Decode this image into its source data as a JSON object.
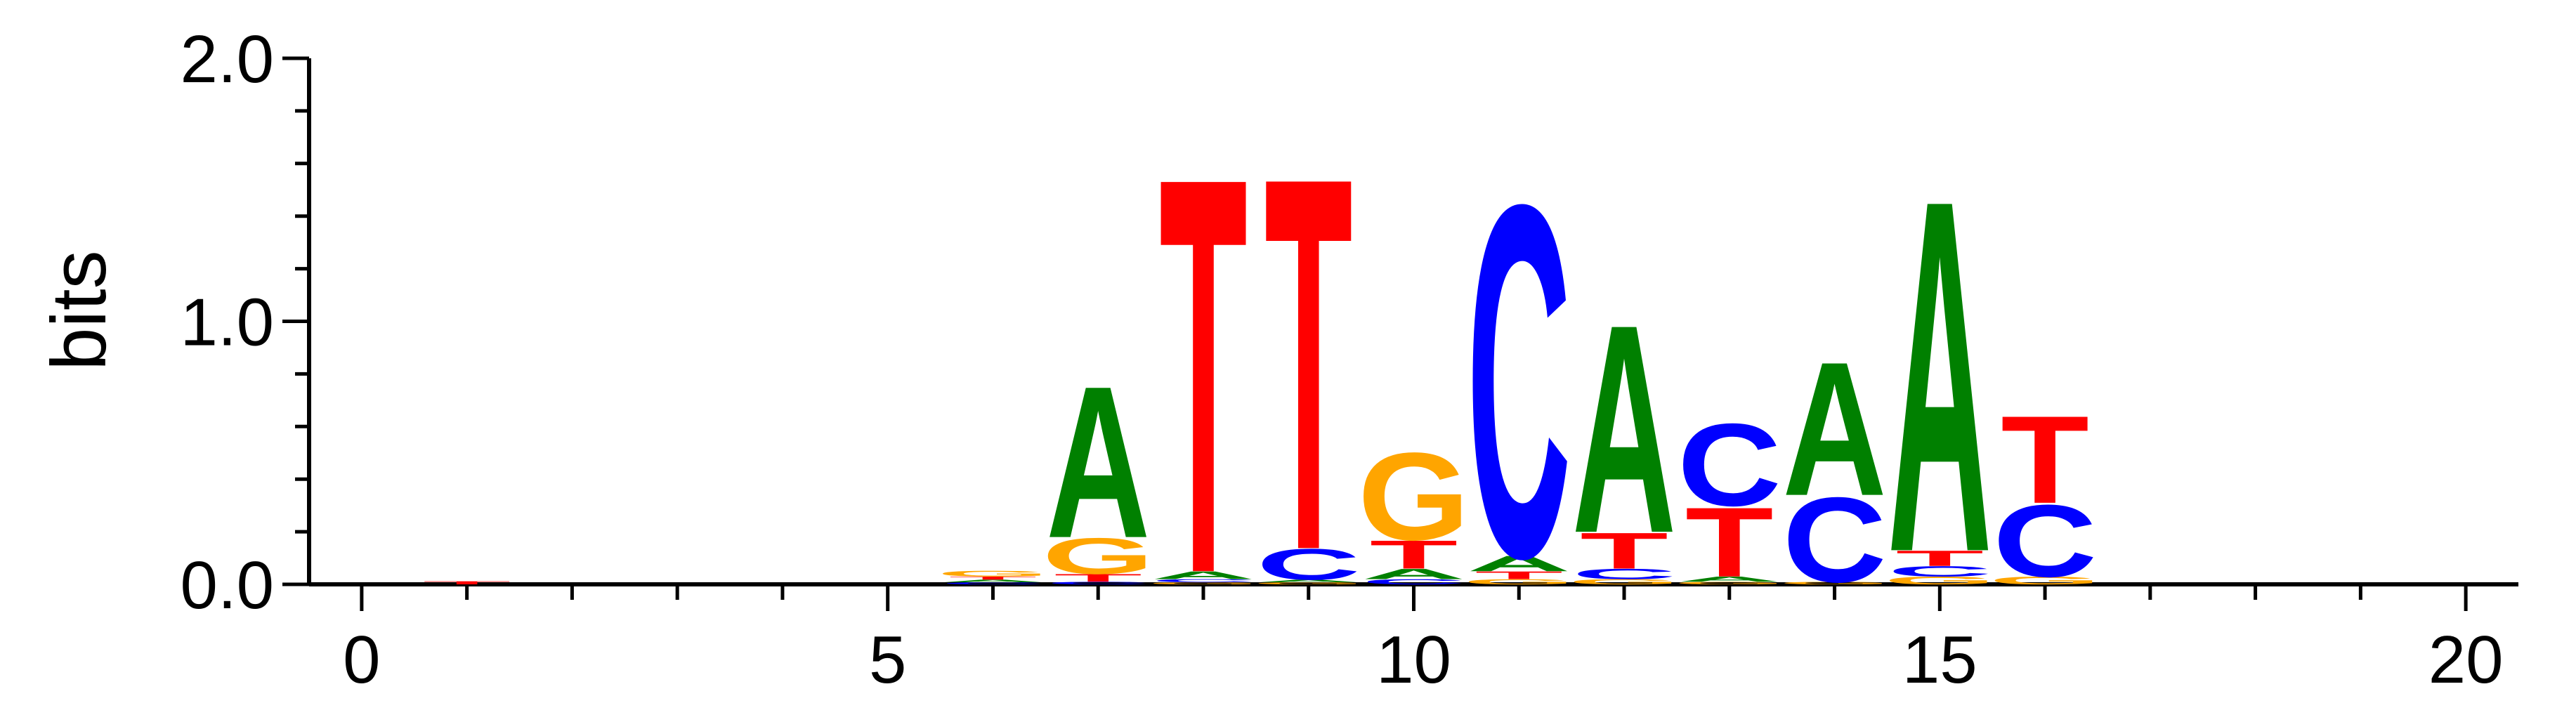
{
  "chart_data": {
    "type": "sequence-logo",
    "ylabel": "bits",
    "ylim": [
      0,
      2
    ],
    "xlim": [
      -0.5,
      20.5
    ],
    "y_ticks": [
      "0.0",
      "1.0",
      "2.0"
    ],
    "x_ticks": [
      "0",
      "5",
      "10",
      "15",
      "20"
    ],
    "colors": {
      "A": "#008000",
      "C": "#0000ff",
      "G": "#ffa500",
      "T": "#ff0000"
    },
    "positions": [
      {
        "pos": 1,
        "letters": [
          {
            "letter": "T",
            "bits": 0.012
          }
        ]
      },
      {
        "pos": 6,
        "letters": [
          {
            "letter": "C",
            "bits": 0.008
          },
          {
            "letter": "A",
            "bits": 0.01
          },
          {
            "letter": "T",
            "bits": 0.012
          },
          {
            "letter": "G",
            "bits": 0.022
          }
        ]
      },
      {
        "pos": 7,
        "letters": [
          {
            "letter": "C",
            "bits": 0.01
          },
          {
            "letter": "T",
            "bits": 0.03
          },
          {
            "letter": "G",
            "bits": 0.14
          },
          {
            "letter": "A",
            "bits": 0.59
          }
        ]
      },
      {
        "pos": 8,
        "letters": [
          {
            "letter": "G",
            "bits": 0.008
          },
          {
            "letter": "C",
            "bits": 0.012
          },
          {
            "letter": "A",
            "bits": 0.03
          },
          {
            "letter": "T",
            "bits": 1.54
          }
        ]
      },
      {
        "pos": 9,
        "letters": [
          {
            "letter": "G",
            "bits": 0.008
          },
          {
            "letter": "A",
            "bits": 0.01
          },
          {
            "letter": "C",
            "bits": 0.12
          },
          {
            "letter": "T",
            "bits": 1.45
          }
        ]
      },
      {
        "pos": 10,
        "letters": [
          {
            "letter": "C",
            "bits": 0.02
          },
          {
            "letter": "A",
            "bits": 0.04
          },
          {
            "letter": "T",
            "bits": 0.11
          },
          {
            "letter": "G",
            "bits": 0.34
          }
        ]
      },
      {
        "pos": 11,
        "letters": [
          {
            "letter": "G",
            "bits": 0.02
          },
          {
            "letter": "T",
            "bits": 0.03
          },
          {
            "letter": "A",
            "bits": 0.06
          },
          {
            "letter": "C",
            "bits": 1.37
          }
        ]
      },
      {
        "pos": 12,
        "letters": [
          {
            "letter": "G",
            "bits": 0.02
          },
          {
            "letter": "C",
            "bits": 0.04
          },
          {
            "letter": "T",
            "bits": 0.14
          },
          {
            "letter": "A",
            "bits": 0.81
          }
        ]
      },
      {
        "pos": 13,
        "letters": [
          {
            "letter": "G",
            "bits": 0.01
          },
          {
            "letter": "A",
            "bits": 0.02
          },
          {
            "letter": "T",
            "bits": 0.27
          },
          {
            "letter": "C",
            "bits": 0.32
          }
        ]
      },
      {
        "pos": 14,
        "letters": [
          {
            "letter": "G",
            "bits": 0.01
          },
          {
            "letter": "C",
            "bits": 0.33
          },
          {
            "letter": "A",
            "bits": 0.52
          }
        ]
      },
      {
        "pos": 15,
        "letters": [
          {
            "letter": "G",
            "bits": 0.03
          },
          {
            "letter": "C",
            "bits": 0.04
          },
          {
            "letter": "T",
            "bits": 0.06
          },
          {
            "letter": "A",
            "bits": 1.37
          }
        ]
      },
      {
        "pos": 16,
        "letters": [
          {
            "letter": "G",
            "bits": 0.03
          },
          {
            "letter": "C",
            "bits": 0.28
          },
          {
            "letter": "T",
            "bits": 0.34
          }
        ]
      }
    ]
  }
}
